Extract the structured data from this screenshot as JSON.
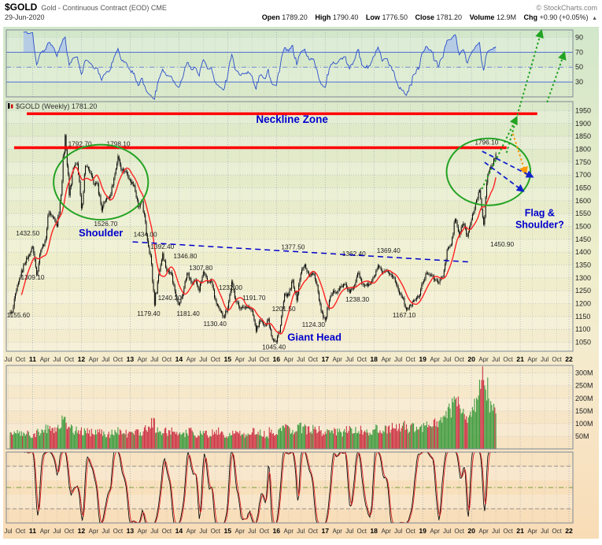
{
  "header": {
    "symbol": "$GOLD",
    "description": "Gold - Continuous Contract (EOD) CME",
    "date": "29-Jun-2020",
    "copyright": "© StockCharts.com",
    "chg_arrow": "▲",
    "quote": [
      {
        "label": "Open",
        "value": "1789.20"
      },
      {
        "label": "High",
        "value": "1790.40"
      },
      {
        "label": "Low",
        "value": "1776.50"
      },
      {
        "label": "Close",
        "value": "1781.20"
      },
      {
        "label": "Volume",
        "value": "12.9M"
      },
      {
        "label": "Chg",
        "value": "+0.90 (+0.05%)"
      }
    ]
  },
  "chart_data": {
    "type": "candlestick",
    "title": "$GOLD Gold - Continuous Contract (EOD) CME Weekly",
    "price_label": "$GOLD (Weekly) 1781.20",
    "x_domain": [
      2010.46,
      2022.08
    ],
    "series_start": "2010-07",
    "series_interval": "monthly",
    "monthly_closes": [
      1165,
      1248,
      1307,
      1357,
      1386,
      1421,
      1315,
      1411,
      1439,
      1556,
      1536,
      1502,
      1628,
      1862,
      1620,
      1725,
      1746,
      1566,
      1737,
      1711,
      1668,
      1664,
      1564,
      1604,
      1615,
      1687,
      1771,
      1719,
      1712,
      1676,
      1660,
      1572,
      1598,
      1472,
      1387,
      1200,
      1312,
      1396,
      1327,
      1323,
      1250,
      1195,
      1240,
      1321,
      1283,
      1291,
      1250,
      1322,
      1285,
      1287,
      1211,
      1173,
      1150,
      1184,
      1283,
      1213,
      1183,
      1184,
      1190,
      1172,
      1095,
      1135,
      1115,
      1141,
      1065,
      1052,
      1116,
      1234,
      1232,
      1290,
      1215,
      1320,
      1351,
      1309,
      1317,
      1273,
      1173,
      1135,
      1210,
      1248,
      1247,
      1268,
      1275,
      1242,
      1268,
      1321,
      1280,
      1271,
      1275,
      1303,
      1345,
      1318,
      1325,
      1315,
      1298,
      1253,
      1224,
      1178,
      1192,
      1215,
      1226,
      1281,
      1321,
      1313,
      1292,
      1284,
      1306,
      1410,
      1428,
      1529,
      1466,
      1513,
      1464,
      1523,
      1589,
      1640,
      1510,
      1700,
      1735,
      1781
    ],
    "monthly_volumes_M": [
      55,
      60,
      65,
      70,
      62,
      58,
      62,
      66,
      70,
      85,
      75,
      70,
      82,
      112,
      95,
      85,
      75,
      70,
      72,
      68,
      66,
      64,
      70,
      62,
      60,
      65,
      75,
      70,
      65,
      60,
      65,
      70,
      68,
      96,
      86,
      106,
      80,
      75,
      70,
      65,
      70,
      68,
      60,
      65,
      70,
      62,
      58,
      60,
      62,
      58,
      65,
      70,
      60,
      55,
      58,
      60,
      64,
      55,
      52,
      56,
      75,
      70,
      62,
      58,
      72,
      65,
      76,
      92,
      85,
      80,
      75,
      95,
      85,
      75,
      80,
      85,
      90,
      70,
      65,
      70,
      68,
      72,
      66,
      75,
      70,
      72,
      78,
      70,
      65,
      64,
      80,
      75,
      78,
      80,
      85,
      80,
      90,
      95,
      80,
      85,
      75,
      80,
      92,
      102,
      112,
      100,
      122,
      162,
      150,
      182,
      170,
      152,
      140,
      130,
      185,
      225,
      320,
      245,
      172,
      150
    ],
    "indicators": {
      "ma_weeks": 13,
      "rsi_period": 14,
      "stoch_period": 14
    },
    "y_axis": {
      "main": [
        1950,
        1900,
        1850,
        1800,
        1750,
        1700,
        1650,
        1600,
        1550,
        1500,
        1450,
        1400,
        1350,
        1300,
        1250,
        1200,
        1150,
        1100,
        1050
      ],
      "rsi": [
        {
          "v": 90,
          "l": "90"
        },
        {
          "v": 70,
          "l": "70"
        },
        {
          "v": 50,
          "l": "50"
        },
        {
          "v": 30,
          "l": "30"
        }
      ],
      "volume": [
        {
          "v": 300,
          "l": "300M"
        },
        {
          "v": 250,
          "l": "250M"
        },
        {
          "v": 200,
          "l": "200M"
        },
        {
          "v": 150,
          "l": "150M"
        },
        {
          "v": 100,
          "l": "100M"
        },
        {
          "v": 50,
          "l": "50M"
        }
      ]
    },
    "x_ticks": [
      {
        "t": 2010.5,
        "l": "Jul"
      },
      {
        "t": 2010.75,
        "l": "Oct"
      },
      {
        "t": 2011,
        "l": "11",
        "yr": 1
      },
      {
        "t": 2011.25,
        "l": "Apr"
      },
      {
        "t": 2011.5,
        "l": "Jul"
      },
      {
        "t": 2011.75,
        "l": "Oct"
      },
      {
        "t": 2012,
        "l": "12",
        "yr": 1
      },
      {
        "t": 2012.25,
        "l": "Apr"
      },
      {
        "t": 2012.5,
        "l": "Jul"
      },
      {
        "t": 2012.75,
        "l": "Oct"
      },
      {
        "t": 2013,
        "l": "13",
        "yr": 1
      },
      {
        "t": 2013.25,
        "l": "Apr"
      },
      {
        "t": 2013.5,
        "l": "Jul"
      },
      {
        "t": 2013.75,
        "l": "Oct"
      },
      {
        "t": 2014,
        "l": "14",
        "yr": 1
      },
      {
        "t": 2014.25,
        "l": "Apr"
      },
      {
        "t": 2014.5,
        "l": "Jul"
      },
      {
        "t": 2014.75,
        "l": "Oct"
      },
      {
        "t": 2015,
        "l": "15",
        "yr": 1
      },
      {
        "t": 2015.25,
        "l": "Apr"
      },
      {
        "t": 2015.5,
        "l": "Jul"
      },
      {
        "t": 2015.75,
        "l": "Oct"
      },
      {
        "t": 2016,
        "l": "16",
        "yr": 1
      },
      {
        "t": 2016.25,
        "l": "Apr"
      },
      {
        "t": 2016.5,
        "l": "Jul"
      },
      {
        "t": 2016.75,
        "l": "Oct"
      },
      {
        "t": 2017,
        "l": "17",
        "yr": 1
      },
      {
        "t": 2017.25,
        "l": "Apr"
      },
      {
        "t": 2017.5,
        "l": "Jul"
      },
      {
        "t": 2017.75,
        "l": "Oct"
      },
      {
        "t": 2018,
        "l": "18",
        "yr": 1
      },
      {
        "t": 2018.25,
        "l": "Apr"
      },
      {
        "t": 2018.5,
        "l": "Jul"
      },
      {
        "t": 2018.75,
        "l": "Oct"
      },
      {
        "t": 2019,
        "l": "19",
        "yr": 1
      },
      {
        "t": 2019.25,
        "l": "Apr"
      },
      {
        "t": 2019.5,
        "l": "Jul"
      },
      {
        "t": 2019.75,
        "l": "Oct"
      },
      {
        "t": 2020,
        "l": "20",
        "yr": 1
      },
      {
        "t": 2020.25,
        "l": "Apr"
      },
      {
        "t": 2020.5,
        "l": "Jul"
      },
      {
        "t": 2020.75,
        "l": "Oct"
      },
      {
        "t": 2021,
        "l": "21",
        "yr": 1
      },
      {
        "t": 2021.25,
        "l": "Apr"
      },
      {
        "t": 2021.5,
        "l": "Jul"
      },
      {
        "t": 2021.75,
        "l": "Oct"
      },
      {
        "t": 2022,
        "l": "22",
        "yr": 1
      }
    ],
    "swing_labels": [
      {
        "t": 2010.47,
        "p": 1156,
        "text": "1155.60",
        "a": "s"
      },
      {
        "t": 2011.0,
        "p": 1302,
        "text": "1309.10"
      },
      {
        "t": 2010.9,
        "p": 1474,
        "text": "1432.50"
      },
      {
        "t": 2011.97,
        "p": 1822,
        "text": "1792.70"
      },
      {
        "t": 2012.76,
        "p": 1822,
        "text": "1798.10"
      },
      {
        "t": 2012.5,
        "p": 1510,
        "text": "1526.70"
      },
      {
        "t": 2013.31,
        "p": 1470,
        "text": "1434.00"
      },
      {
        "t": 2013.38,
        "p": 1162,
        "text": "1179.40"
      },
      {
        "t": 2013.66,
        "p": 1422,
        "text": "1392.40"
      },
      {
        "t": 2013.81,
        "p": 1223,
        "text": "1240.20"
      },
      {
        "t": 2014.13,
        "p": 1385,
        "text": "1346.80"
      },
      {
        "t": 2014.19,
        "p": 1162,
        "text": "1181.40"
      },
      {
        "t": 2014.45,
        "p": 1339,
        "text": "1307.80"
      },
      {
        "t": 2014.74,
        "p": 1122,
        "text": "1130.40"
      },
      {
        "t": 2015.06,
        "p": 1263,
        "text": "1232.00"
      },
      {
        "t": 2015.54,
        "p": 1223,
        "text": "1191.70"
      },
      {
        "t": 2015.95,
        "p": 1032,
        "text": "1045.40"
      },
      {
        "t": 2016.15,
        "p": 1180,
        "text": "1201.50"
      },
      {
        "t": 2016.34,
        "p": 1420,
        "text": "1377.50"
      },
      {
        "t": 2016.76,
        "p": 1119,
        "text": "1124.30"
      },
      {
        "t": 2017.59,
        "p": 1394,
        "text": "1362.40"
      },
      {
        "t": 2017.66,
        "p": 1217,
        "text": "1238.30"
      },
      {
        "t": 2018.3,
        "p": 1407,
        "text": "1369.40"
      },
      {
        "t": 2018.62,
        "p": 1155,
        "text": "1167.10"
      },
      {
        "t": 2020.31,
        "p": 1828,
        "text": "1796.10"
      },
      {
        "t": 2020.63,
        "p": 1431,
        "text": "1450.90"
      }
    ],
    "annotations": {
      "necklines": [
        {
          "p": 1938,
          "t1": 2010.88,
          "t2": 2021.35
        },
        {
          "p": 1806,
          "t1": 2010.62,
          "t2": 2020.72
        }
      ],
      "texts": [
        {
          "t": 2016.32,
          "p": 1902,
          "text": "Neckline Zone",
          "size": 13.5
        },
        {
          "t": 2012.4,
          "p": 1462,
          "text": "Shoulder",
          "size": 13
        },
        {
          "t": 2016.78,
          "p": 1056,
          "text": "Giant Head",
          "size": 13
        },
        {
          "t": 2021.4,
          "p": 1540,
          "text": "Flag &",
          "size": 12.5
        },
        {
          "t": 2021.4,
          "p": 1494,
          "text": "Shoulder?",
          "size": 12.5
        }
      ],
      "ellipses": [
        {
          "t": 2012.4,
          "p": 1672,
          "rt": 0.97,
          "rp": 146
        },
        {
          "t": 2020.35,
          "p": 1712,
          "rt": 0.86,
          "rp": 130
        }
      ],
      "trendline": {
        "t1": 2013.05,
        "p1": 1440,
        "t2": 2019.95,
        "p2": 1362
      },
      "green_arrows": [
        {
          "t1": 2020.72,
          "p1": 1786,
          "t2": 2021.43,
          "p2": 2257
        },
        {
          "t1": 2021.55,
          "p1": 1982,
          "t2": 2021.9,
          "p2": 2172
        },
        {
          "t1": 2020.21,
          "p1": 1645,
          "t2": 2020.92,
          "p2": 1921
        }
      ],
      "orange_arrows": [
        {
          "t1": 2020.85,
          "p1": 1860,
          "t2": 2021.11,
          "p2": 1707
        }
      ],
      "blue_arrows": [
        {
          "t1": 2020.22,
          "p1": 1792,
          "t2": 2021.24,
          "p2": 1694
        },
        {
          "t1": 2020.27,
          "p1": 1749,
          "t2": 2021.05,
          "p2": 1639
        }
      ]
    },
    "colors": {
      "bg_top": "#d2e7cb",
      "bg_mid1": "#e0eac9",
      "bg_mid2": "#eeeecb",
      "bg_low": "#f4ecce",
      "bg_peach": "#f7e5c6",
      "bg_bottom": "#f8dcb6",
      "grid": "#8899aa",
      "panel_border": "#7d8896",
      "candle": "#000000",
      "ma": "#ff2222",
      "rsi_line": "#2a4fc9",
      "rsi_level": "#4f6fd0",
      "rsi_fill": "#a8c0e8",
      "vol_up": "#3f9b3f",
      "vol_down": "#cc3344",
      "stoch_k": "#111111",
      "stoch_d": "#dd2222",
      "stoch_mid": "#7a9a3a",
      "stoch_level": "#777777",
      "neckline": "#ff0000",
      "annotation_blue": "#0000cc",
      "annotation_green": "#23a323",
      "annotation_orange": "#ff9900",
      "axis_text": "#222222",
      "tick_month": "#333333",
      "tick_year": "#000000",
      "swing_label": "#222222"
    }
  }
}
